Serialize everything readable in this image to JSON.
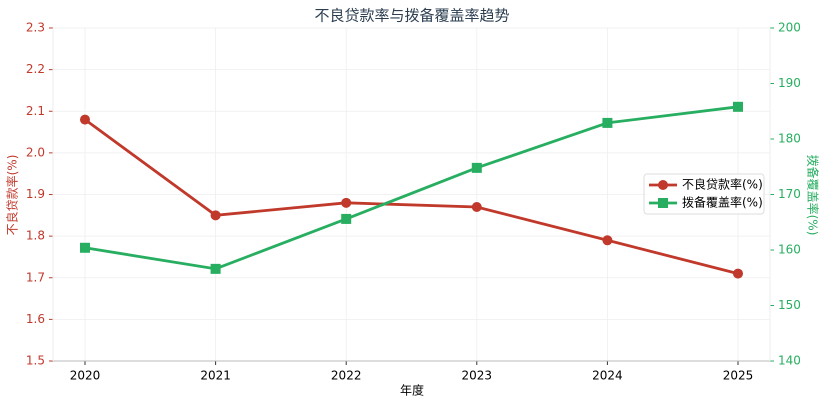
{
  "chart_data": {
    "type": "line",
    "title": "不良贷款率与拨备覆盖率趋势",
    "xlabel": "年度",
    "ylabel": "不良贷款率(%)",
    "y2label": "拨备覆盖率(%)",
    "categories": [
      "2020",
      "2021",
      "2022",
      "2023",
      "2024",
      "2025"
    ],
    "series": [
      {
        "name": "不良贷款率(%)",
        "color": "#c0392b",
        "marker": "circle",
        "values": [
          2.08,
          1.85,
          1.88,
          1.87,
          1.79,
          1.71
        ]
      },
      {
        "name": "拨备覆盖率(%)",
        "color": "#27ae60",
        "marker": "square",
        "axis": "y2",
        "values": [
          160.4,
          156.6,
          165.6,
          174.8,
          182.9,
          185.8
        ]
      }
    ],
    "ylim": [
      1.5,
      2.3
    ],
    "yticks": [
      1.5,
      1.6,
      1.7,
      1.8,
      1.9,
      {
        "value": 2,
        "label": "2.0"
      },
      2.1,
      2.2,
      2.3
    ],
    "y2lim": [
      140,
      200
    ],
    "y2ticks": [
      140,
      150,
      160,
      170,
      180,
      190,
      200
    ],
    "grid": true,
    "legend": "right"
  }
}
